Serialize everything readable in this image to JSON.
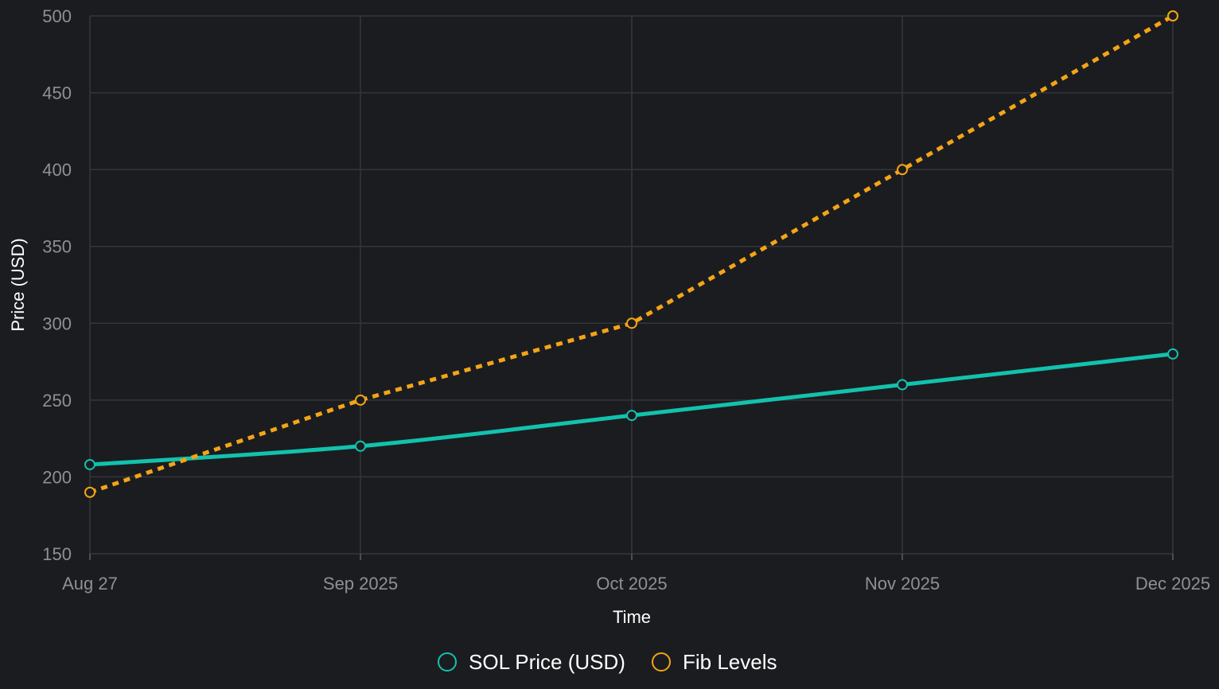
{
  "chart_data": {
    "type": "line",
    "xlabel": "Time",
    "ylabel": "Price (USD)",
    "ylim": [
      150,
      500
    ],
    "y_ticks": [
      150,
      200,
      250,
      300,
      350,
      400,
      450,
      500
    ],
    "x_ticks": [
      {
        "date": "2025-08-27",
        "label": "Aug 27"
      },
      {
        "date": "2025-09-01",
        "label": "Sep 2025"
      },
      {
        "date": "2025-10-01",
        "label": "Oct 2025"
      },
      {
        "date": "2025-11-01",
        "label": "Nov 2025"
      },
      {
        "date": "2025-12-01",
        "label": "Dec 2025"
      }
    ],
    "grid": true,
    "legend_position": "bottom-center",
    "series": [
      {
        "name": "SOL Price (USD)",
        "color": "#12c2ad",
        "line_style": "solid",
        "points": [
          {
            "x": "2025-08-27",
            "y": 208
          },
          {
            "x": "2025-09-01",
            "y": 220
          },
          {
            "x": "2025-10-01",
            "y": 240
          },
          {
            "x": "2025-11-01",
            "y": 260
          },
          {
            "x": "2025-12-01",
            "y": 280
          }
        ]
      },
      {
        "name": "Fib Levels",
        "color": "#f4a417",
        "line_style": "dotted",
        "points": [
          {
            "x": "2025-08-27",
            "y": 190
          },
          {
            "x": "2025-09-01",
            "y": 250
          },
          {
            "x": "2025-10-01",
            "y": 300
          },
          {
            "x": "2025-11-01",
            "y": 400
          },
          {
            "x": "2025-12-01",
            "y": 500
          }
        ]
      }
    ]
  }
}
